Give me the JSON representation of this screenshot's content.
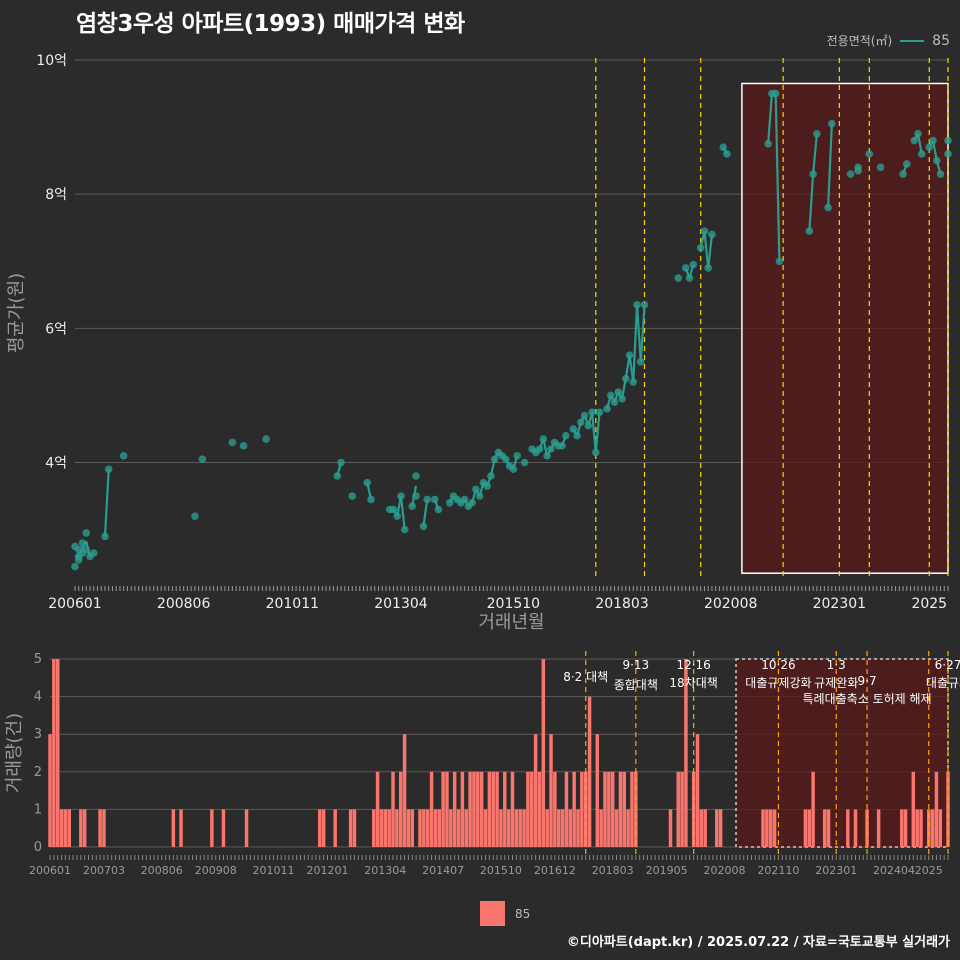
{
  "title": "염창3우성 아파트(1993) 매매가격 변화",
  "legend_top": {
    "title": "전용면적(㎡)",
    "value": "85"
  },
  "legend_bottom": {
    "value": "85"
  },
  "credit": "©디아파트(dapt.kr) / 2025.07.22 / 자료=국토교통부 실거래가",
  "colors": {
    "background": "#2b2b2b",
    "line": "#2a9d8f",
    "bar": "#f8766d",
    "policy": "#ffd700",
    "highlight": "#5a1a1a"
  },
  "chart_data": [
    {
      "type": "line",
      "title": "염창3우성 아파트(1993) 매매가격 변화",
      "xlabel": "거래년월",
      "ylabel": "평균가(원)",
      "ylim": [
        2.1,
        10.0
      ],
      "y_ticks": [
        4,
        6,
        8,
        10
      ],
      "y_tick_labels": [
        "4억",
        "6억",
        "8억",
        "10억"
      ],
      "x_ticks": [
        "200601",
        "200806",
        "201011",
        "201304",
        "201510",
        "201803",
        "202008",
        "202301",
        "2025"
      ],
      "x_range": [
        "2006-01",
        "2025-06"
      ],
      "highlight_range": [
        "2020-11",
        "2025-06"
      ],
      "policy_lines": [
        "2017-08",
        "2018-09",
        "2019-12",
        "2021-10",
        "2023-01",
        "2023-09",
        "2025-01",
        "2025-06"
      ],
      "series": [
        {
          "name": "85",
          "x": [
            "2006-01",
            "2006-01",
            "2006-02",
            "2006-02",
            "2006-02",
            "2006-03",
            "2006-03",
            "2006-04",
            "2006-04",
            "2006-05",
            "2006-06",
            "2006-09",
            "2006-10",
            "2007-02",
            "2008-09",
            "2008-11",
            "2009-07",
            "2009-10",
            "2010-04",
            "2011-11",
            "2011-12",
            "2012-03",
            "2012-07",
            "2012-08",
            "2013-01",
            "2013-02",
            "2013-03",
            "2013-04",
            "2013-05",
            "2013-07",
            "2013-08",
            "2013-08",
            "2013-10",
            "2013-11",
            "2014-01",
            "2014-02",
            "2014-05",
            "2014-06",
            "2014-07",
            "2014-08",
            "2014-09",
            "2014-10",
            "2014-11",
            "2014-12",
            "2015-01",
            "2015-02",
            "2015-03",
            "2015-04",
            "2015-05",
            "2015-06",
            "2015-07",
            "2015-08",
            "2015-09",
            "2015-10",
            "2015-11",
            "2016-01",
            "2016-03",
            "2016-04",
            "2016-05",
            "2016-06",
            "2016-07",
            "2016-08",
            "2016-09",
            "2016-10",
            "2016-11",
            "2016-12",
            "2017-02",
            "2017-03",
            "2017-04",
            "2017-05",
            "2017-06",
            "2017-07",
            "2017-08",
            "2017-09",
            "2017-11",
            "2017-12",
            "2018-01",
            "2018-02",
            "2018-03",
            "2018-04",
            "2018-05",
            "2018-06",
            "2018-07",
            "2018-08",
            "2018-09",
            "2019-06",
            "2019-08",
            "2019-09",
            "2019-10",
            "2019-12",
            "2020-01",
            "2020-02",
            "2020-03",
            "2020-06",
            "2020-07",
            "2021-06",
            "2021-07",
            "2021-08",
            "2021-09",
            "2022-05",
            "2022-06",
            "2022-07",
            "2022-10",
            "2022-11",
            "2023-04",
            "2023-06",
            "2023-06",
            "2023-09",
            "2023-12",
            "2024-06",
            "2024-07",
            "2024-09",
            "2024-10",
            "2024-11",
            "2025-01",
            "2025-02",
            "2025-03",
            "2025-04",
            "2025-06",
            "2025-06"
          ],
          "values": [
            2.45,
            2.75,
            2.6,
            2.55,
            2.7,
            2.65,
            2.8,
            2.95,
            2.7,
            2.6,
            2.65,
            2.9,
            3.9,
            4.1,
            3.2,
            4.05,
            4.3,
            4.25,
            4.35,
            3.8,
            4.0,
            3.5,
            3.7,
            3.45,
            3.3,
            3.3,
            3.2,
            3.5,
            3.0,
            3.35,
            3.5,
            3.8,
            3.05,
            3.45,
            3.45,
            3.3,
            3.4,
            3.5,
            3.45,
            3.4,
            3.45,
            3.35,
            3.4,
            3.6,
            3.5,
            3.7,
            3.65,
            3.8,
            4.05,
            4.15,
            4.1,
            4.05,
            3.95,
            3.9,
            4.1,
            4.0,
            4.2,
            4.15,
            4.2,
            4.35,
            4.1,
            4.2,
            4.3,
            4.25,
            4.25,
            4.4,
            4.5,
            4.4,
            4.6,
            4.7,
            4.55,
            4.75,
            4.15,
            4.75,
            4.8,
            5.0,
            4.9,
            5.05,
            4.95,
            5.25,
            5.6,
            5.2,
            6.35,
            5.5,
            6.35,
            6.75,
            6.9,
            6.75,
            6.95,
            7.2,
            7.45,
            6.9,
            7.4,
            8.7,
            8.6,
            8.75,
            9.5,
            9.5,
            7.0,
            7.45,
            8.3,
            8.9,
            7.8,
            9.05,
            8.3,
            8.4,
            8.35,
            8.6,
            8.4,
            8.3,
            8.45,
            8.8,
            8.9,
            8.6,
            8.7,
            8.8,
            8.5,
            8.3,
            8.6,
            8.8
          ]
        }
      ]
    },
    {
      "type": "bar",
      "xlabel": "",
      "ylabel": "거래량(건)",
      "ylim": [
        0,
        5
      ],
      "y_ticks": [
        0,
        1,
        2,
        3,
        4,
        5
      ],
      "x_ticks": [
        "200601",
        "200703",
        "200806",
        "200908",
        "201011",
        "201201",
        "201304",
        "201407",
        "201510",
        "201612",
        "201803",
        "201905",
        "202008",
        "202110",
        "202301",
        "202404",
        "2025"
      ],
      "highlight_range": [
        "2020-11",
        "2025-06"
      ],
      "annotations": [
        {
          "date": "2017-08",
          "line1": "8·2 대책",
          "line2": ""
        },
        {
          "date": "2018-09",
          "line1": "9·13",
          "line2": "종합대책"
        },
        {
          "date": "2019-12",
          "line1": "12·16",
          "line2": "18차대책"
        },
        {
          "date": "2021-10",
          "line1": "10·26",
          "line2": "대출규제강화"
        },
        {
          "date": "2023-01",
          "line1": "1·3",
          "line2": "규제완화"
        },
        {
          "date": "2023-09",
          "line1": "9·7",
          "line2": "특례대출축소 토허제 해제"
        },
        {
          "date": "2025-06",
          "line1": "6·27",
          "line2": "대출규제"
        }
      ],
      "series": [
        {
          "name": "85",
          "x": [
            "2006-01",
            "2006-02",
            "2006-03",
            "2006-04",
            "2006-05",
            "2006-06",
            "2006-09",
            "2006-10",
            "2007-02",
            "2007-03",
            "2008-09",
            "2008-11",
            "2009-07",
            "2009-10",
            "2010-04",
            "2011-11",
            "2011-12",
            "2012-03",
            "2012-07",
            "2012-08",
            "2013-01",
            "2013-02",
            "2013-03",
            "2013-04",
            "2013-05",
            "2013-06",
            "2013-07",
            "2013-08",
            "2013-09",
            "2013-10",
            "2013-11",
            "2014-01",
            "2014-02",
            "2014-03",
            "2014-04",
            "2014-05",
            "2014-06",
            "2014-07",
            "2014-08",
            "2014-09",
            "2014-10",
            "2014-11",
            "2014-12",
            "2015-01",
            "2015-02",
            "2015-03",
            "2015-04",
            "2015-05",
            "2015-06",
            "2015-07",
            "2015-08",
            "2015-09",
            "2015-10",
            "2015-11",
            "2015-12",
            "2016-01",
            "2016-02",
            "2016-03",
            "2016-04",
            "2016-05",
            "2016-06",
            "2016-07",
            "2016-08",
            "2016-09",
            "2016-10",
            "2016-11",
            "2016-12",
            "2017-01",
            "2017-02",
            "2017-03",
            "2017-04",
            "2017-05",
            "2017-06",
            "2017-07",
            "2017-08",
            "2017-09",
            "2017-11",
            "2017-12",
            "2018-01",
            "2018-02",
            "2018-03",
            "2018-04",
            "2018-05",
            "2018-06",
            "2018-07",
            "2018-08",
            "2018-09",
            "2019-06",
            "2019-08",
            "2019-09",
            "2019-10",
            "2019-12",
            "2020-01",
            "2020-02",
            "2020-03",
            "2020-06",
            "2020-07",
            "2021-06",
            "2021-07",
            "2021-08",
            "2021-09",
            "2022-05",
            "2022-06",
            "2022-07",
            "2022-10",
            "2022-11",
            "2023-04",
            "2023-06",
            "2023-09",
            "2023-12",
            "2024-06",
            "2024-07",
            "2024-09",
            "2024-10",
            "2024-11",
            "2025-01",
            "2025-02",
            "2025-03",
            "2025-04",
            "2025-06"
          ],
          "values": [
            3,
            5,
            5,
            1,
            1,
            1,
            1,
            1,
            1,
            1,
            1,
            1,
            1,
            1,
            1,
            1,
            1,
            1,
            1,
            1,
            1,
            2,
            1,
            1,
            1,
            2,
            1,
            2,
            3,
            1,
            1,
            1,
            1,
            1,
            2,
            1,
            1,
            2,
            2,
            1,
            2,
            1,
            2,
            1,
            2,
            2,
            2,
            2,
            1,
            2,
            2,
            2,
            1,
            2,
            1,
            2,
            1,
            1,
            1,
            2,
            2,
            3,
            2,
            5,
            1,
            3,
            2,
            1,
            1,
            2,
            1,
            2,
            1,
            2,
            2,
            4,
            3,
            1,
            2,
            2,
            2,
            1,
            2,
            2,
            1,
            2,
            2,
            1,
            2,
            2,
            5,
            2,
            3,
            1,
            1,
            1,
            1,
            1,
            1,
            1,
            1,
            1,
            1,
            2,
            1,
            1,
            1,
            1,
            1,
            1,
            1,
            1,
            2,
            1,
            1,
            1,
            1,
            2,
            1,
            2
          ]
        }
      ]
    }
  ]
}
